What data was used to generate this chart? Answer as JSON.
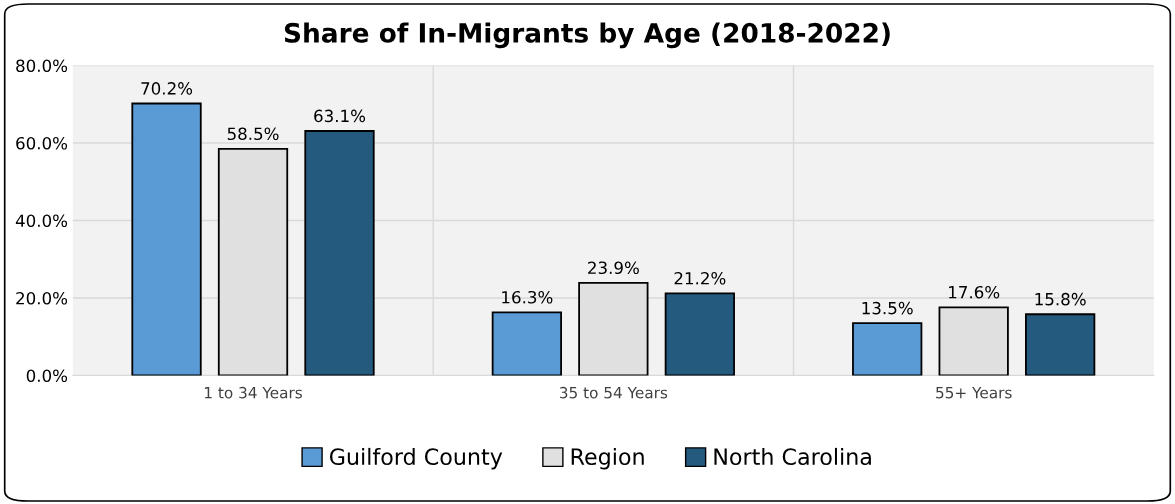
{
  "chart_data": {
    "type": "bar",
    "title": "Share of In-Migrants by Age (2018-2022)",
    "categories": [
      "1 to 34 Years",
      "35 to 54 Years",
      "55+ Years"
    ],
    "series": [
      {
        "name": "Guilford County",
        "color": "#5b9bd5",
        "values": [
          70.2,
          16.3,
          13.5
        ],
        "value_labels": [
          "70.2%",
          "16.3%",
          "13.5%"
        ]
      },
      {
        "name": "Region",
        "color": "#e0e0e0",
        "values": [
          58.5,
          23.9,
          17.6
        ],
        "value_labels": [
          "58.5%",
          "23.9%",
          "17.6%"
        ]
      },
      {
        "name": "North Carolina",
        "color": "#245a7e",
        "values": [
          63.1,
          21.2,
          15.8
        ],
        "value_labels": [
          "63.1%",
          "21.2%",
          "15.8%"
        ]
      }
    ],
    "ylim": [
      0,
      80
    ],
    "yticks": [
      {
        "value": 0,
        "label": "0.0%"
      },
      {
        "value": 20,
        "label": "20.0%"
      },
      {
        "value": 40,
        "label": "40.0%"
      },
      {
        "value": 60,
        "label": "60.0%"
      },
      {
        "value": 80,
        "label": "80.0%"
      }
    ],
    "grid": true,
    "legend": "bottom"
  }
}
